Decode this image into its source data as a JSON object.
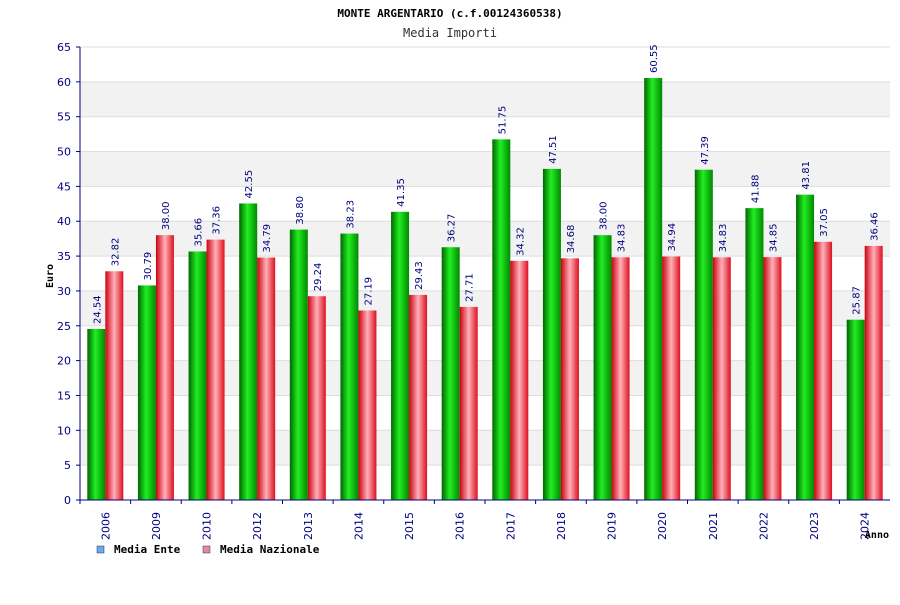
{
  "chart_data": {
    "type": "bar",
    "title": "MONTE ARGENTARIO (c.f.00124360538)",
    "subtitle": "Media Importi",
    "xlabel": "Anno",
    "ylabel": "Euro",
    "ylim": [
      0,
      65
    ],
    "yticks": [
      "0",
      "5",
      "10",
      "15",
      "20",
      "25",
      "30",
      "35",
      "40",
      "45",
      "50",
      "55",
      "60",
      "65"
    ],
    "grid": true,
    "legend_position": "bottom-left",
    "categories": [
      "2006",
      "2009",
      "2010",
      "2012",
      "2013",
      "2014",
      "2015",
      "2016",
      "2017",
      "2018",
      "2019",
      "2020",
      "2021",
      "2022",
      "2023",
      "2024"
    ],
    "series": [
      {
        "name": "Media Ente",
        "legend_color": "#66aaee",
        "color": "#00b000",
        "values": [
          24.54,
          30.79,
          35.66,
          42.55,
          38.8,
          38.23,
          41.35,
          36.27,
          51.75,
          47.51,
          38.0,
          60.55,
          47.39,
          41.88,
          43.81,
          25.87
        ],
        "labels": [
          "24.54",
          "30.79",
          "35.66",
          "42.55",
          "38.80",
          "38.23",
          "41.35",
          "36.27",
          "51.75",
          "47.51",
          "38.00",
          "60.55",
          "47.39",
          "41.88",
          "43.81",
          "25.87"
        ]
      },
      {
        "name": "Media Nazionale",
        "legend_color": "#e088b0",
        "color": "#e82030",
        "values": [
          32.82,
          38.0,
          37.36,
          34.79,
          29.24,
          27.19,
          29.43,
          27.71,
          34.32,
          34.68,
          34.83,
          34.94,
          34.83,
          34.85,
          37.05,
          36.46
        ],
        "labels": [
          "32.82",
          "38.00",
          "37.36",
          "34.79",
          "29.24",
          "27.19",
          "29.43",
          "27.71",
          "34.32",
          "34.68",
          "34.83",
          "34.94",
          "34.83",
          "34.85",
          "37.05",
          "36.46"
        ]
      }
    ]
  }
}
